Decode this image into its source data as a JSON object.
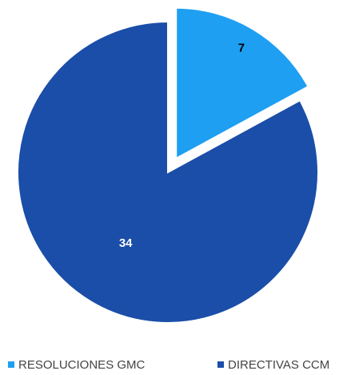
{
  "chart_data": {
    "type": "pie",
    "categories": [
      "RESOLUCIONES GMC",
      "DIRECTIVAS CCM"
    ],
    "values": [
      7,
      34
    ],
    "colors": [
      "#1e9ff2",
      "#1a4ea8"
    ]
  }
}
